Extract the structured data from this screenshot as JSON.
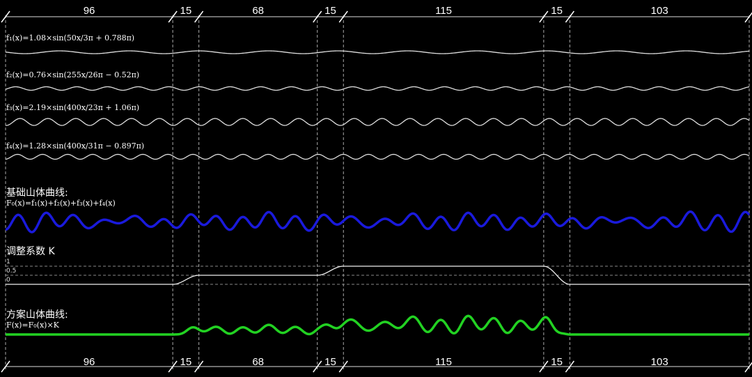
{
  "segments": [
    96,
    15,
    68,
    15,
    115,
    15,
    103
  ],
  "formulas": [
    {
      "label": "f₁(x)=1.08×sin(50x/3π + 0.788π)",
      "amplitude": 1.08
    },
    {
      "label": "f₂(x)=0.76×sin(255x/26π − 0.52π)",
      "amplitude": 0.76
    },
    {
      "label": "f₃(x)=2.19×sin(400x/23π + 1.06π)",
      "amplitude": 2.19
    },
    {
      "label": "f₄(x)=1.28×sin(400x/31π − 0.897π)",
      "amplitude": 1.28
    }
  ],
  "base": {
    "title": "基础山体曲线:",
    "formula": "F₀(x)=f₁(x)+f₂(x)+f₃(x)+f₄(x)",
    "color": "#1a1adc"
  },
  "coef": {
    "title": "调整系数  K",
    "ticks": [
      "1",
      "0.5",
      "0"
    ],
    "levels": [
      0,
      0.5,
      0.5,
      1,
      1,
      0,
      0
    ]
  },
  "scheme": {
    "title": "方案山体曲线:",
    "formula": "F(x)=F₀(x)×K",
    "color": "#22d222"
  }
}
